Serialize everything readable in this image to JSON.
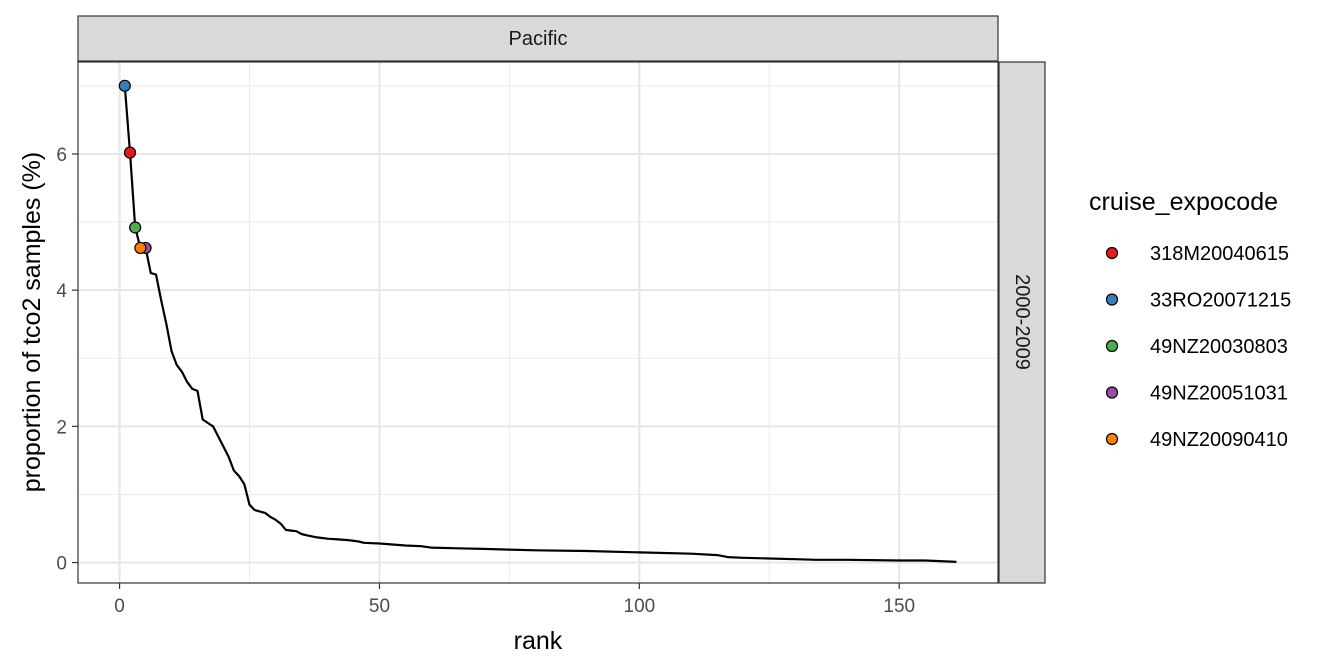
{
  "chart_data": {
    "type": "line",
    "facet_col": "Pacific",
    "facet_row": "2000-2009",
    "xlabel": "rank",
    "ylabel": "proportion of tco2 samples (%)",
    "xlim": [
      -8,
      169
    ],
    "ylim": [
      -0.3,
      7.35
    ],
    "x_ticks": [
      0,
      50,
      100,
      150
    ],
    "y_ticks": [
      0,
      2,
      4,
      6
    ],
    "x_tick_labels": [
      "0",
      "50",
      "100",
      "150"
    ],
    "y_tick_labels": [
      "0",
      "2",
      "4",
      "6"
    ],
    "grid": true,
    "legend": {
      "title": "cruise_expocode",
      "position": "right",
      "entries": [
        {
          "label": "318M20040615",
          "color": "#e41a1c"
        },
        {
          "label": "33RO20071215",
          "color": "#377eb8"
        },
        {
          "label": "49NZ20030803",
          "color": "#4daf4a"
        },
        {
          "label": "49NZ20051031",
          "color": "#984ea3"
        },
        {
          "label": "49NZ20090410",
          "color": "#ff7f00"
        }
      ]
    },
    "line": {
      "x": [
        1,
        2,
        3,
        4,
        5,
        6,
        7,
        8,
        9,
        10,
        11,
        12,
        13,
        14,
        15,
        16,
        17,
        18,
        19,
        20,
        21,
        22,
        23,
        24,
        25,
        26,
        28,
        29,
        30,
        31,
        32,
        33,
        34,
        35,
        36,
        38,
        40,
        42,
        44,
        46,
        47,
        50,
        55,
        58,
        60,
        65,
        70,
        75,
        80,
        90,
        100,
        110,
        115,
        117,
        120,
        125,
        130,
        134,
        140,
        150,
        155,
        161
      ],
      "y": [
        7.0,
        6.02,
        4.92,
        4.62,
        4.62,
        4.25,
        4.23,
        3.85,
        3.5,
        3.1,
        2.9,
        2.8,
        2.65,
        2.55,
        2.52,
        2.1,
        2.05,
        2.0,
        1.85,
        1.7,
        1.55,
        1.35,
        1.27,
        1.15,
        0.85,
        0.77,
        0.73,
        0.67,
        0.63,
        0.57,
        0.48,
        0.47,
        0.46,
        0.42,
        0.4,
        0.37,
        0.35,
        0.34,
        0.33,
        0.31,
        0.29,
        0.28,
        0.25,
        0.24,
        0.22,
        0.21,
        0.2,
        0.19,
        0.18,
        0.17,
        0.15,
        0.13,
        0.11,
        0.08,
        0.07,
        0.06,
        0.05,
        0.04,
        0.04,
        0.03,
        0.03,
        0.01
      ]
    },
    "points": [
      {
        "cruise": "33RO20071215",
        "rank": 1,
        "value": 7.0,
        "color": "#377eb8"
      },
      {
        "cruise": "318M20040615",
        "rank": 2,
        "value": 6.02,
        "color": "#e41a1c"
      },
      {
        "cruise": "49NZ20030803",
        "rank": 3,
        "value": 4.92,
        "color": "#4daf4a"
      },
      {
        "cruise": "49NZ20051031",
        "rank": 5,
        "value": 4.62,
        "color": "#984ea3"
      },
      {
        "cruise": "49NZ20090410",
        "rank": 4,
        "value": 4.62,
        "color": "#ff7f00"
      }
    ]
  }
}
